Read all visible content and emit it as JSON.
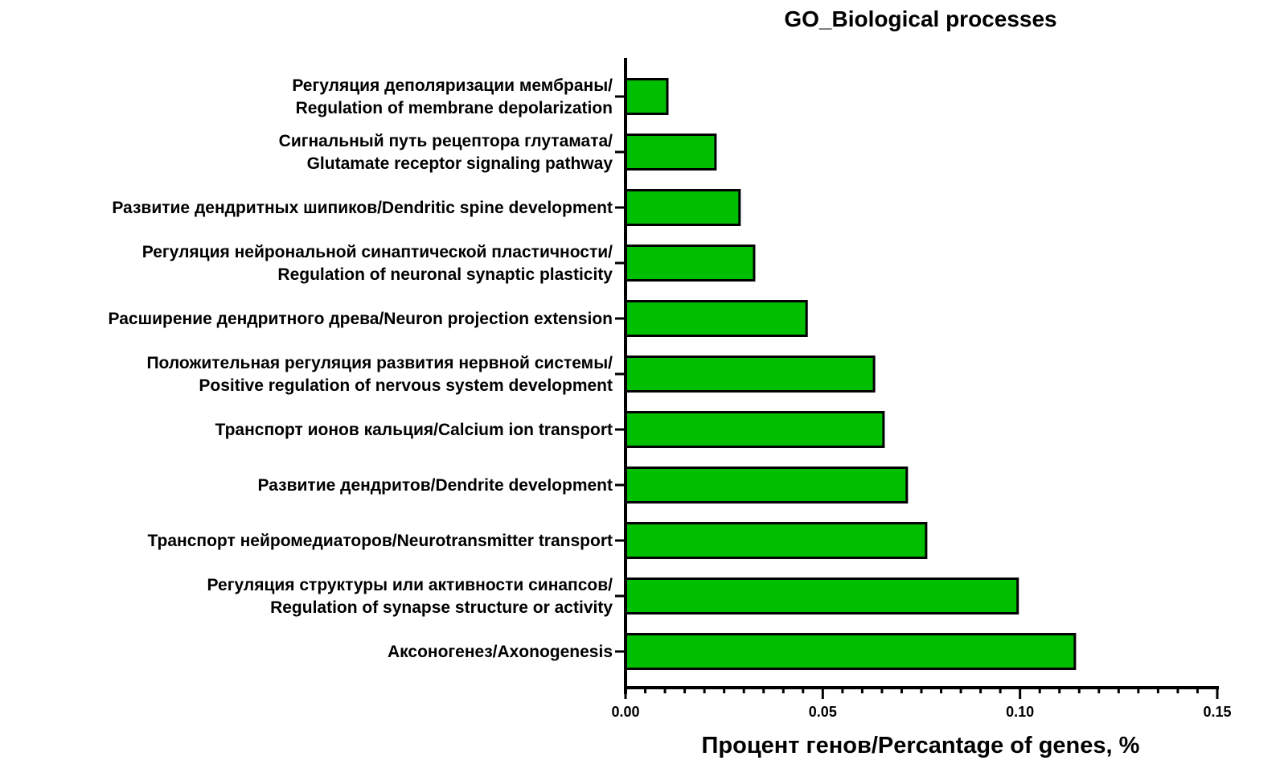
{
  "chart_data": {
    "type": "bar",
    "orientation": "horizontal",
    "title": "GO_Biological processes",
    "xlabel": "Процент генов/Percantage of genes, %",
    "ylabel": "",
    "xlim": [
      0,
      0.15
    ],
    "xticks": [
      "0.00",
      "0.05",
      "0.10",
      "0.15"
    ],
    "minor_tick_step": 0.005,
    "bar_color": "#00bf00",
    "categories": [
      [
        "Регуляция деполяризации мембраны/",
        "Regulation of membrane depolarization"
      ],
      [
        "Сигнальный путь рецептора глутамата/",
        "Glutamate receptor signaling pathway"
      ],
      [
        "Развитие дендритных шипиков/Dendritic spine development"
      ],
      [
        "Регуляция нейрональной синаптической пластичности/",
        "Regulation of neuronal synaptic plasticity"
      ],
      [
        "Расширение дендритного древа/Neuron projection extension"
      ],
      [
        "Положительная регуляция развития нервной системы/",
        "Positive regulation of nervous system development"
      ],
      [
        "Транспорт ионов кальция/Calcium ion transport"
      ],
      [
        "Развитие дендритов/Dendrite development"
      ],
      [
        "Транспорт нейромедиаторов/Neurotransmitter transport"
      ],
      [
        "Регуляция структуры или активности синапсов/",
        "Regulation of synapse structure or activity"
      ],
      [
        "Аксоногенез/Axonogenesis"
      ]
    ],
    "values": [
      0.0106,
      0.0228,
      0.0289,
      0.0326,
      0.0459,
      0.063,
      0.0654,
      0.0713,
      0.0762,
      0.0994,
      0.1139
    ]
  }
}
